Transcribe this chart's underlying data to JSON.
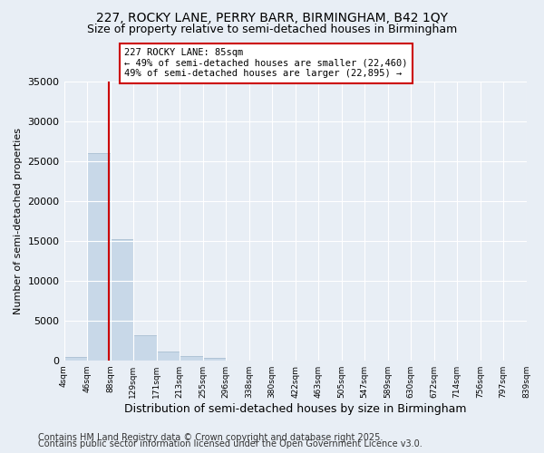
{
  "title": "227, ROCKY LANE, PERRY BARR, BIRMINGHAM, B42 1QY",
  "subtitle": "Size of property relative to semi-detached houses in Birmingham",
  "xlabel": "Distribution of semi-detached houses by size in Birmingham",
  "ylabel": "Number of semi-detached properties",
  "bin_labels": [
    "4sqm",
    "46sqm",
    "88sqm",
    "129sqm",
    "171sqm",
    "213sqm",
    "255sqm",
    "296sqm",
    "338sqm",
    "380sqm",
    "422sqm",
    "463sqm",
    "505sqm",
    "547sqm",
    "589sqm",
    "630sqm",
    "672sqm",
    "714sqm",
    "756sqm",
    "797sqm",
    "839sqm"
  ],
  "bin_edges": [
    4,
    46,
    88,
    129,
    171,
    213,
    255,
    296,
    338,
    380,
    422,
    463,
    505,
    547,
    589,
    630,
    672,
    714,
    756,
    797,
    839
  ],
  "bar_values": [
    400,
    26000,
    15200,
    3100,
    1100,
    500,
    300,
    0,
    0,
    0,
    0,
    0,
    0,
    0,
    0,
    0,
    0,
    0,
    0,
    0
  ],
  "bar_color": "#c8d8e8",
  "bar_edge_color": "#a0b8cc",
  "vline_x": 85,
  "vline_color": "#cc0000",
  "ylim": [
    0,
    35000
  ],
  "yticks": [
    0,
    5000,
    10000,
    15000,
    20000,
    25000,
    30000,
    35000
  ],
  "annotation_title": "227 ROCKY LANE: 85sqm",
  "annotation_line1": "← 49% of semi-detached houses are smaller (22,460)",
  "annotation_line2": "49% of semi-detached houses are larger (22,895) →",
  "annotation_box_color": "#ffffff",
  "annotation_border_color": "#cc0000",
  "bg_color": "#e8eef5",
  "grid_color": "#ffffff",
  "footer1": "Contains HM Land Registry data © Crown copyright and database right 2025.",
  "footer2": "Contains public sector information licensed under the Open Government Licence v3.0.",
  "title_fontsize": 10,
  "subtitle_fontsize": 9,
  "annotation_fontsize": 7.5,
  "footer_fontsize": 7
}
